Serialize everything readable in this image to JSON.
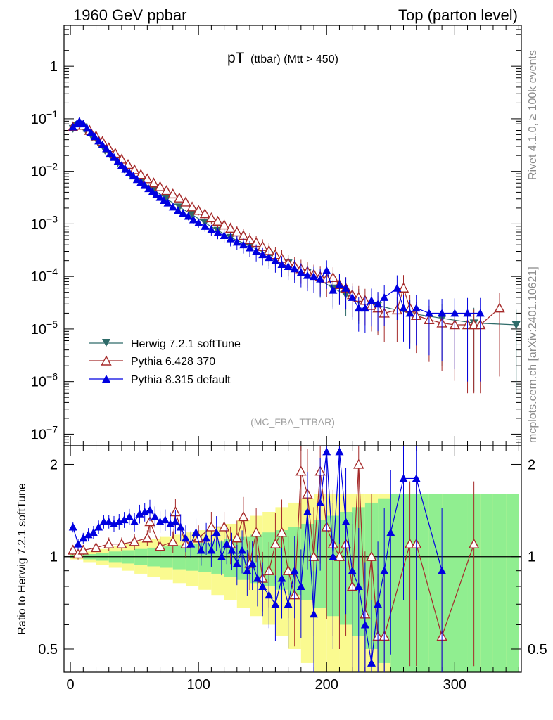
{
  "header": {
    "left": "1960 GeV ppbar",
    "right": "Top (parton level)"
  },
  "plot_title": {
    "main": "pT",
    "sub": "(ttbar) (Mtt > 450)"
  },
  "analysis_tag": "(MC_FBA_TTBAR)",
  "side_labels": {
    "top": "Rivet 4.1.0, ≥ 100k events",
    "bottom": "mcplots.cern.ch [arXiv:2401.10621]"
  },
  "ratio_ylabel": "Ratio to Herwig 7.2.1 softTune",
  "legend": [
    {
      "label": "Herwig 7.2.1 softTune",
      "color": "#2e6b69",
      "marker": "triangle-down-filled"
    },
    {
      "label": "Pythia 6.428 370",
      "color": "#a52a2a",
      "marker": "triangle-up-open"
    },
    {
      "label": "Pythia 8.315 default",
      "color": "#0000e0",
      "marker": "triangle-up-filled"
    }
  ],
  "colors": {
    "herwig": "#2e6b69",
    "pythia6": "#a52a2a",
    "pythia8": "#0000e0",
    "band_green": "#90ee90",
    "band_yellow": "#fafa90"
  },
  "chart_data": [
    {
      "type": "scatter",
      "panel": "main",
      "yscale": "log",
      "ylim": [
        6e-08,
        6
      ],
      "xlim": [
        -5,
        352
      ],
      "ytick_labels": [
        {
          "v": 1e-07,
          "mant": "10",
          "exp": "−7"
        },
        {
          "v": 1e-06,
          "mant": "10",
          "exp": "−6"
        },
        {
          "v": 1e-05,
          "mant": "10",
          "exp": "−5"
        },
        {
          "v": 0.0001,
          "mant": "10",
          "exp": "−4"
        },
        {
          "v": 0.001,
          "mant": "10",
          "exp": "−3"
        },
        {
          "v": 0.01,
          "mant": "10",
          "exp": "−2"
        },
        {
          "v": 0.1,
          "mant": "10",
          "exp": "−1"
        },
        {
          "v": 1,
          "mant": "1",
          "exp": ""
        }
      ],
      "series": [
        {
          "name": "Herwig 7.2.1 softTune",
          "x": [
            2,
            5,
            7,
            10,
            13,
            17,
            22,
            27,
            32,
            37,
            42,
            47,
            55,
            65,
            75,
            85,
            95,
            105,
            115,
            125,
            140,
            155,
            170,
            185,
            195,
            205,
            215,
            225,
            240,
            265,
            290,
            315,
            348
          ],
          "y": [
            0.065,
            0.075,
            0.078,
            0.07,
            0.055,
            0.045,
            0.034,
            0.025,
            0.019,
            0.0145,
            0.011,
            0.0085,
            0.0065,
            0.0045,
            0.003,
            0.0021,
            0.0015,
            0.00105,
            0.00075,
            0.00055,
            0.00038,
            0.00026,
            0.00018,
            0.00012,
            8.5e-05,
            6e-05,
            4.5e-05,
            3.5e-05,
            2.8e-05,
            2e-05,
            1.6e-05,
            1.3e-05,
            1.2e-05
          ]
        },
        {
          "name": "Pythia 6.428 370",
          "x": [
            2,
            6,
            10,
            15,
            20,
            25,
            30,
            35,
            40,
            45,
            50,
            55,
            60,
            65,
            70,
            75,
            80,
            85,
            90,
            95,
            100,
            105,
            110,
            115,
            120,
            125,
            130,
            135,
            140,
            145,
            150,
            155,
            160,
            165,
            170,
            175,
            180,
            185,
            190,
            195,
            200,
            205,
            210,
            215,
            220,
            225,
            230,
            235,
            240,
            245,
            255,
            260,
            265,
            270,
            280,
            290,
            300,
            310,
            315,
            320,
            335
          ],
          "y": [
            0.07,
            0.075,
            0.075,
            0.06,
            0.047,
            0.037,
            0.028,
            0.022,
            0.017,
            0.0135,
            0.0107,
            0.0087,
            0.0072,
            0.006,
            0.0051,
            0.0043,
            0.0037,
            0.0031,
            0.0026,
            0.0021,
            0.0018,
            0.00155,
            0.0013,
            0.00112,
            0.00095,
            0.00082,
            0.0007,
            0.0006,
            0.0005,
            0.00044,
            0.00037,
            0.00031,
            0.00026,
            0.00022,
            0.00018,
            0.00016,
            0.00014,
            0.000125,
            0.00011,
            0.0001,
            9e-05,
            9.5e-05,
            7e-05,
            6e-05,
            4.5e-05,
            4e-05,
            3.5e-05,
            2.8e-05,
            2.5e-05,
            2e-05,
            2.3e-05,
            6e-05,
            2.5e-05,
            1.8e-05,
            1.5e-05,
            1.3e-05,
            1.2e-05,
            1.2e-05,
            1.2e-05,
            1.2e-05,
            2.5e-05
          ]
        },
        {
          "name": "Pythia 8.315 default",
          "x": [
            2,
            5,
            7,
            10,
            13,
            16,
            19,
            22,
            25,
            28,
            31,
            34,
            37,
            40,
            43,
            46,
            49,
            52,
            55,
            58,
            61,
            64,
            67,
            70,
            73,
            76,
            80,
            84,
            88,
            92,
            96,
            100,
            105,
            110,
            115,
            120,
            125,
            130,
            135,
            140,
            145,
            150,
            155,
            160,
            165,
            170,
            175,
            180,
            185,
            190,
            195,
            200,
            205,
            210,
            215,
            220,
            225,
            230,
            235,
            240,
            245,
            255,
            260,
            265,
            270,
            280,
            290,
            300,
            310,
            320
          ],
          "y": [
            0.07,
            0.08,
            0.09,
            0.08,
            0.066,
            0.055,
            0.046,
            0.038,
            0.032,
            0.027,
            0.022,
            0.0185,
            0.0155,
            0.013,
            0.011,
            0.0095,
            0.0082,
            0.007,
            0.0062,
            0.0054,
            0.0047,
            0.0041,
            0.0036,
            0.0032,
            0.0028,
            0.0025,
            0.0021,
            0.0018,
            0.0016,
            0.0014,
            0.0012,
            0.00105,
            0.0009,
            0.00078,
            0.00068,
            0.0006,
            0.00052,
            0.00045,
            0.0004,
            0.00035,
            0.0003,
            0.00026,
            0.00023,
            0.0002,
            0.00017,
            0.000155,
            0.00014,
            0.00012,
            0.000105,
            0.0001,
            9e-05,
            0.00013,
            5.5e-05,
            7e-05,
            6e-05,
            4e-05,
            2.5e-05,
            2.5e-05,
            3.5e-05,
            3e-05,
            4e-05,
            6e-05,
            2.5e-05,
            2e-05,
            2.5e-05,
            2e-05,
            2e-05,
            2e-05,
            2e-05,
            2e-05
          ]
        }
      ]
    },
    {
      "type": "scatter",
      "panel": "ratio",
      "yscale": "log",
      "ylim": [
        0.42,
        2.3
      ],
      "xlim": [
        -5,
        352
      ],
      "xlabel": "",
      "ylabel": "Ratio to Herwig 7.2.1 softTune",
      "xticks": [
        0,
        100,
        200,
        300
      ],
      "ytick_labels": [
        {
          "v": 0.5,
          "label": "0.5"
        },
        {
          "v": 1,
          "label": "1"
        },
        {
          "v": 2,
          "label": "2"
        }
      ],
      "reference_line": 1,
      "bands": {
        "x": [
          0,
          10,
          20,
          30,
          40,
          50,
          60,
          70,
          80,
          90,
          100,
          110,
          120,
          130,
          140,
          150,
          160,
          170,
          180,
          190,
          200,
          210,
          220,
          230,
          240,
          250,
          260,
          270,
          280,
          290,
          300,
          310,
          320,
          330,
          340,
          350
        ],
        "green_frac": [
          0.01,
          0.02,
          0.03,
          0.04,
          0.05,
          0.06,
          0.07,
          0.08,
          0.09,
          0.1,
          0.11,
          0.12,
          0.14,
          0.16,
          0.18,
          0.2,
          0.22,
          0.25,
          0.28,
          0.32,
          0.36,
          0.4,
          0.45,
          0.5,
          0.55,
          0.6,
          0.6,
          0.6,
          0.6,
          0.6,
          0.6,
          0.6,
          0.6,
          0.6,
          0.6,
          0.6
        ],
        "yellow_frac": [
          0.02,
          0.04,
          0.06,
          0.08,
          0.1,
          0.12,
          0.14,
          0.16,
          0.18,
          0.2,
          0.22,
          0.25,
          0.28,
          0.32,
          0.36,
          0.4,
          0.45,
          0.5,
          0.55,
          0.6,
          0.6,
          0.6,
          0.6,
          0.6,
          0.6,
          0.6,
          0.6,
          0.6,
          0.6,
          0.6,
          0.6,
          0.6,
          0.6,
          0.6,
          0.6,
          0.6
        ]
      },
      "series": [
        {
          "name": "Pythia 6.428 370",
          "x": [
            2,
            6,
            10,
            20,
            30,
            40,
            50,
            60,
            62,
            70,
            80,
            82,
            90,
            100,
            110,
            120,
            125,
            130,
            135,
            140,
            145,
            150,
            155,
            160,
            165,
            170,
            175,
            180,
            185,
            190,
            195,
            200,
            205,
            210,
            215,
            220,
            225,
            230,
            235,
            240,
            245,
            265,
            270,
            290,
            315
          ],
          "y": [
            1.05,
            1.02,
            1.05,
            1.07,
            1.1,
            1.1,
            1.12,
            1.15,
            1.3,
            1.08,
            1.12,
            1.4,
            1.1,
            1.15,
            1.25,
            1.25,
            1.1,
            1.15,
            1.35,
            0.95,
            1.2,
            0.85,
            0.9,
            1.1,
            1.2,
            0.9,
            0.75,
            1.9,
            1.6,
            1.0,
            1.9,
            1.25,
            1.1,
            1.0,
            1.1,
            0.8,
            2.0,
            0.65,
            1.0,
            0.55,
            0.55,
            1.1,
            1.1,
            0.55,
            1.1
          ],
          "yerr_frac": [
            0.04,
            0.04,
            0.04,
            0.05,
            0.05,
            0.05,
            0.06,
            0.06,
            0.08,
            0.08,
            0.08,
            0.1,
            0.1,
            0.1,
            0.12,
            0.12,
            0.14,
            0.14,
            0.16,
            0.18,
            0.2,
            0.22,
            0.24,
            0.26,
            0.28,
            0.3,
            0.32,
            0.35,
            0.4,
            0.45,
            0.5,
            0.5,
            0.5,
            0.5,
            0.5,
            0.6,
            0.6,
            0.6,
            0.6,
            0.6,
            0.6,
            0.6,
            0.6,
            0.6,
            0.6
          ]
        },
        {
          "name": "Pythia 8.315 default",
          "x": [
            2,
            6,
            10,
            14,
            18,
            22,
            26,
            30,
            34,
            38,
            42,
            46,
            50,
            54,
            58,
            62,
            66,
            70,
            74,
            78,
            82,
            86,
            90,
            94,
            98,
            102,
            106,
            110,
            114,
            118,
            122,
            126,
            130,
            134,
            138,
            142,
            146,
            150,
            155,
            160,
            165,
            170,
            175,
            180,
            185,
            190,
            195,
            200,
            205,
            210,
            215,
            220,
            225,
            230,
            235,
            240,
            245,
            250,
            260,
            270,
            290
          ],
          "y": [
            1.25,
            1.1,
            1.15,
            1.18,
            1.2,
            1.25,
            1.3,
            1.3,
            1.28,
            1.3,
            1.32,
            1.35,
            1.3,
            1.38,
            1.4,
            1.42,
            1.35,
            1.3,
            1.32,
            1.28,
            1.3,
            1.25,
            1.15,
            1.1,
            1.2,
            1.05,
            1.15,
            1.05,
            1.2,
            1.0,
            1.1,
            1.05,
            0.95,
            1.05,
            0.9,
            0.95,
            0.85,
            0.8,
            0.75,
            0.7,
            0.85,
            0.7,
            0.9,
            0.8,
            1.4,
            0.65,
            1.5,
            2.2,
            1.0,
            2.2,
            1.3,
            0.9,
            0.8,
            0.6,
            0.45,
            0.7,
            0.9,
            1.2,
            1.8,
            1.8,
            0.9
          ],
          "yerr_frac": [
            0.04,
            0.04,
            0.04,
            0.05,
            0.05,
            0.05,
            0.05,
            0.05,
            0.06,
            0.06,
            0.06,
            0.06,
            0.07,
            0.07,
            0.07,
            0.08,
            0.08,
            0.08,
            0.08,
            0.09,
            0.09,
            0.1,
            0.1,
            0.1,
            0.11,
            0.11,
            0.12,
            0.12,
            0.13,
            0.13,
            0.14,
            0.14,
            0.15,
            0.16,
            0.17,
            0.18,
            0.19,
            0.2,
            0.22,
            0.24,
            0.26,
            0.28,
            0.3,
            0.32,
            0.35,
            0.38,
            0.4,
            0.45,
            0.5,
            0.5,
            0.5,
            0.55,
            0.55,
            0.6,
            0.6,
            0.6,
            0.6,
            0.6,
            0.6,
            0.6,
            0.6
          ]
        }
      ]
    }
  ]
}
